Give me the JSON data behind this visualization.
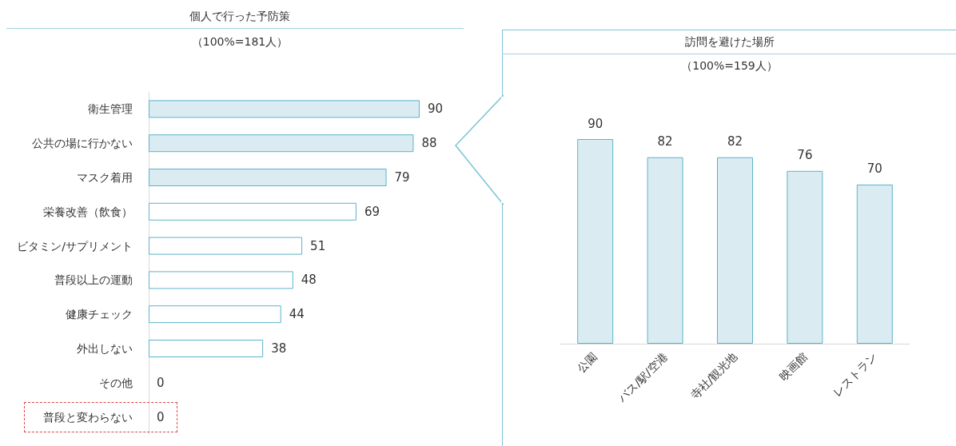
{
  "chart_data": [
    {
      "type": "bar",
      "orientation": "horizontal",
      "title": "個人で行った予防策",
      "subtitle": "（100%=181人）",
      "categories": [
        "衛生管理",
        "公共の場に行かない",
        "マスク着用",
        "栄養改善（飲食）",
        "ビタミン/サプリメント",
        "普段以上の運動",
        "健康チェック",
        "外出しない",
        "その他",
        "普段と変わらない"
      ],
      "values": [
        90,
        88,
        79,
        69,
        51,
        48,
        44,
        38,
        0,
        0
      ],
      "colors": [
        "#daecf2",
        "#daecf2",
        "#daecf2",
        "#ffffff",
        "#ffffff",
        "#ffffff",
        "#ffffff",
        "#ffffff",
        "#ffffff",
        "#ffffff"
      ],
      "data_labels": true
    },
    {
      "type": "bar",
      "title": "訪問を避けた場所",
      "subtitle": "（100%=159人）",
      "categories": [
        "公園",
        "バス/駅/空港",
        "寺社/観光地",
        "映画館",
        "レストラン"
      ],
      "values": [
        90,
        82,
        82,
        76,
        70
      ],
      "colors": [
        "#daecf2",
        "#daecf2",
        "#daecf2",
        "#daecf2",
        "#daecf2"
      ],
      "data_labels": true
    }
  ]
}
